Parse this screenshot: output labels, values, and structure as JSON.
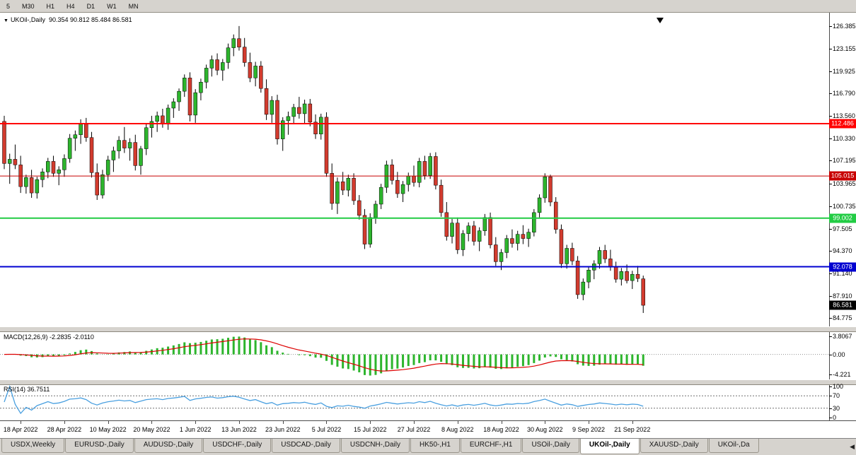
{
  "toolbar": {
    "timeframes": [
      "5",
      "M30",
      "H1",
      "H4",
      "D1",
      "W1",
      "MN"
    ]
  },
  "chart": {
    "collapse_glyph": "▼",
    "symbol_label": "UKOil-,Daily",
    "ohlc_values": "90.354 90.812 85.484 86.581",
    "marker_icon": "arrow-down-marker"
  },
  "chart_data": {
    "type": "candlestick",
    "title": "UKOil-,Daily",
    "symbol": "UKOil-",
    "timeframe": "Daily",
    "ohlc_display": {
      "open": "90.354",
      "high": "90.812",
      "low": "85.484",
      "close": "86.581"
    },
    "ylim": [
      84.775,
      126.385
    ],
    "y_axis_ticks": [
      "126.385",
      "123.155",
      "119.925",
      "116.790",
      "113.560",
      "110.330",
      "107.195",
      "103.965",
      "100.735",
      "97.505",
      "94.370",
      "91.140",
      "87.910",
      "84.775"
    ],
    "hlines": [
      {
        "value": 112.486,
        "label": "112.486",
        "color": "#ff0000",
        "width": 2
      },
      {
        "value": 105.015,
        "label": "105.015",
        "color": "#c80000",
        "width": 1
      },
      {
        "value": 99.002,
        "label": "99.002",
        "color": "#22cc44",
        "width": 2
      },
      {
        "value": 92.078,
        "label": "92.078",
        "color": "#0000d0",
        "width": 2
      }
    ],
    "last_price": {
      "value": 86.581,
      "label": "86.581",
      "color": "#000000"
    },
    "x_labels": [
      {
        "text": "18 Apr 2022",
        "index": 3
      },
      {
        "text": "28 Apr 2022",
        "index": 11
      },
      {
        "text": "10 May 2022",
        "index": 19
      },
      {
        "text": "20 May 2022",
        "index": 27
      },
      {
        "text": "1 Jun 2022",
        "index": 35
      },
      {
        "text": "13 Jun 2022",
        "index": 43
      },
      {
        "text": "23 Jun 2022",
        "index": 51
      },
      {
        "text": "5 Jul 2022",
        "index": 59
      },
      {
        "text": "15 Jul 2022",
        "index": 67
      },
      {
        "text": "27 Jul 2022",
        "index": 75
      },
      {
        "text": "8 Aug 2022",
        "index": 83
      },
      {
        "text": "18 Aug 2022",
        "index": 91
      },
      {
        "text": "30 Aug 2022",
        "index": 99
      },
      {
        "text": "9 Sep 2022",
        "index": 107
      },
      {
        "text": "21 Sep 2022",
        "index": 115
      }
    ],
    "candles": [
      [
        112.8,
        113.6,
        106.0,
        106.8
      ],
      [
        106.8,
        108.2,
        103.9,
        107.4
      ],
      [
        107.4,
        109.5,
        106.0,
        106.6
      ],
      [
        106.6,
        107.9,
        102.6,
        103.5
      ],
      [
        103.5,
        105.2,
        102.5,
        104.8
      ],
      [
        104.8,
        105.9,
        101.9,
        102.6
      ],
      [
        102.6,
        104.9,
        101.8,
        104.5
      ],
      [
        104.5,
        106.1,
        103.4,
        105.6
      ],
      [
        105.6,
        107.6,
        104.7,
        107.1
      ],
      [
        107.1,
        107.9,
        104.9,
        105.4
      ],
      [
        105.4,
        106.4,
        103.7,
        105.9
      ],
      [
        105.9,
        108.1,
        104.9,
        107.5
      ],
      [
        107.5,
        111.0,
        106.9,
        110.4
      ],
      [
        110.4,
        111.5,
        108.6,
        110.9
      ],
      [
        110.9,
        113.1,
        109.6,
        112.4
      ],
      [
        112.4,
        113.3,
        109.9,
        110.5
      ],
      [
        110.5,
        111.3,
        104.8,
        105.5
      ],
      [
        105.5,
        106.8,
        101.6,
        102.3
      ],
      [
        102.3,
        105.9,
        101.8,
        105.2
      ],
      [
        105.2,
        107.9,
        104.3,
        107.3
      ],
      [
        107.3,
        109.2,
        105.6,
        108.6
      ],
      [
        108.6,
        110.7,
        107.5,
        110.1
      ],
      [
        110.1,
        112.0,
        108.3,
        109.0
      ],
      [
        109.0,
        110.4,
        107.2,
        109.8
      ],
      [
        109.8,
        110.9,
        105.8,
        106.5
      ],
      [
        106.5,
        109.3,
        105.2,
        108.9
      ],
      [
        108.9,
        112.4,
        108.0,
        111.9
      ],
      [
        111.9,
        113.6,
        110.5,
        112.8
      ],
      [
        112.8,
        114.2,
        111.3,
        113.6
      ],
      [
        113.6,
        114.6,
        111.9,
        112.4
      ],
      [
        112.4,
        115.2,
        111.6,
        114.7
      ],
      [
        114.7,
        116.1,
        113.3,
        115.6
      ],
      [
        115.6,
        117.5,
        114.3,
        117.1
      ],
      [
        117.1,
        119.5,
        116.3,
        119.0
      ],
      [
        119.0,
        119.8,
        112.8,
        113.7
      ],
      [
        113.7,
        117.4,
        112.6,
        116.9
      ],
      [
        116.9,
        118.9,
        115.8,
        118.4
      ],
      [
        118.4,
        120.9,
        117.5,
        120.4
      ],
      [
        120.4,
        122.2,
        119.2,
        121.6
      ],
      [
        121.6,
        122.5,
        119.4,
        120.1
      ],
      [
        120.1,
        121.7,
        118.6,
        121.2
      ],
      [
        121.2,
        123.9,
        120.3,
        123.3
      ],
      [
        123.3,
        125.2,
        122.1,
        124.6
      ],
      [
        124.6,
        126.4,
        122.9,
        123.4
      ],
      [
        123.4,
        124.7,
        120.6,
        121.2
      ],
      [
        121.2,
        122.6,
        118.4,
        119.0
      ],
      [
        119.0,
        121.3,
        117.8,
        120.7
      ],
      [
        120.7,
        121.4,
        116.9,
        117.5
      ],
      [
        117.5,
        118.8,
        113.0,
        113.8
      ],
      [
        113.8,
        116.4,
        112.6,
        115.8
      ],
      [
        115.8,
        116.6,
        109.5,
        110.3
      ],
      [
        110.3,
        113.4,
        108.6,
        112.9
      ],
      [
        112.9,
        114.2,
        110.9,
        113.5
      ],
      [
        113.5,
        115.3,
        112.4,
        114.8
      ],
      [
        114.8,
        116.3,
        113.2,
        113.9
      ],
      [
        113.9,
        115.9,
        112.5,
        115.3
      ],
      [
        115.3,
        116.0,
        112.1,
        112.7
      ],
      [
        112.7,
        113.8,
        110.3,
        111.0
      ],
      [
        111.0,
        113.9,
        110.2,
        113.4
      ],
      [
        113.4,
        114.1,
        104.9,
        105.4
      ],
      [
        105.4,
        106.8,
        100.2,
        101.1
      ],
      [
        101.1,
        104.8,
        99.6,
        104.2
      ],
      [
        104.2,
        105.6,
        102.3,
        103.0
      ],
      [
        103.0,
        105.2,
        102.1,
        104.7
      ],
      [
        104.7,
        105.4,
        100.9,
        101.5
      ],
      [
        101.5,
        102.3,
        98.8,
        99.4
      ],
      [
        99.4,
        100.3,
        94.6,
        95.3
      ],
      [
        95.3,
        99.7,
        94.8,
        99.1
      ],
      [
        99.1,
        101.5,
        98.2,
        101.0
      ],
      [
        101.0,
        103.9,
        100.3,
        103.4
      ],
      [
        103.4,
        107.2,
        102.6,
        106.6
      ],
      [
        106.6,
        107.4,
        103.8,
        104.4
      ],
      [
        104.4,
        105.6,
        101.9,
        102.5
      ],
      [
        102.5,
        104.3,
        101.3,
        103.8
      ],
      [
        103.8,
        105.5,
        102.8,
        105.0
      ],
      [
        105.0,
        106.5,
        103.5,
        104.1
      ],
      [
        104.1,
        107.6,
        103.4,
        107.1
      ],
      [
        107.1,
        107.9,
        104.5,
        105.1
      ],
      [
        105.1,
        108.3,
        104.6,
        107.8
      ],
      [
        107.8,
        108.4,
        103.1,
        103.7
      ],
      [
        103.7,
        104.5,
        99.2,
        99.8
      ],
      [
        99.8,
        101.3,
        95.8,
        96.4
      ],
      [
        96.4,
        98.9,
        95.4,
        98.3
      ],
      [
        98.3,
        99.1,
        93.9,
        94.5
      ],
      [
        94.5,
        97.3,
        93.6,
        96.8
      ],
      [
        96.8,
        98.4,
        95.7,
        97.9
      ],
      [
        97.9,
        98.6,
        95.1,
        95.7
      ],
      [
        95.7,
        97.7,
        94.3,
        97.2
      ],
      [
        97.2,
        99.6,
        96.5,
        99.1
      ],
      [
        99.1,
        99.8,
        94.7,
        95.2
      ],
      [
        95.2,
        96.3,
        92.2,
        92.8
      ],
      [
        92.8,
        94.6,
        91.6,
        94.1
      ],
      [
        94.1,
        96.6,
        93.3,
        96.1
      ],
      [
        96.1,
        97.4,
        94.8,
        95.4
      ],
      [
        95.4,
        97.2,
        94.4,
        96.7
      ],
      [
        96.7,
        98.0,
        95.3,
        96.1
      ],
      [
        96.1,
        97.5,
        94.9,
        97.0
      ],
      [
        97.0,
        100.3,
        96.4,
        99.8
      ],
      [
        99.8,
        102.4,
        99.1,
        101.9
      ],
      [
        101.9,
        105.4,
        101.2,
        104.9
      ],
      [
        104.9,
        105.2,
        100.7,
        101.3
      ],
      [
        101.3,
        102.0,
        96.8,
        97.4
      ],
      [
        97.4,
        98.1,
        91.9,
        92.5
      ],
      [
        92.5,
        95.2,
        91.8,
        94.7
      ],
      [
        94.7,
        95.5,
        92.3,
        92.9
      ],
      [
        92.9,
        93.6,
        87.5,
        88.1
      ],
      [
        88.1,
        90.4,
        87.3,
        89.9
      ],
      [
        89.9,
        92.1,
        89.0,
        91.6
      ],
      [
        91.6,
        93.0,
        90.3,
        92.5
      ],
      [
        92.5,
        94.9,
        91.8,
        94.4
      ],
      [
        94.4,
        95.2,
        92.6,
        93.2
      ],
      [
        93.2,
        94.5,
        91.5,
        92.0
      ],
      [
        92.0,
        92.8,
        89.8,
        90.3
      ],
      [
        90.3,
        91.9,
        89.4,
        91.4
      ],
      [
        91.4,
        92.4,
        89.7,
        90.1
      ],
      [
        90.1,
        91.5,
        88.9,
        91.0
      ],
      [
        91.0,
        92.2,
        89.9,
        90.4
      ],
      [
        90.354,
        90.812,
        85.484,
        86.581
      ]
    ]
  },
  "macd": {
    "title": "MACD(12,26,9)",
    "values_text": "-2.2835 -2.0110",
    "params": {
      "fast": 12,
      "slow": 26,
      "signal": 9
    },
    "axis": [
      {
        "text": "3.8067",
        "value": 3.8067
      },
      {
        "text": "0.00",
        "value": 0
      },
      {
        "text": "-4.221",
        "value": -4.221
      }
    ]
  },
  "rsi": {
    "title": "RSI(14)",
    "value_text": "36.7511",
    "period": 14,
    "levels": [
      70,
      30
    ],
    "axis": [
      {
        "text": "100",
        "value": 100
      },
      {
        "text": "70",
        "value": 70
      },
      {
        "text": "30",
        "value": 30
      },
      {
        "text": "0",
        "value": 0
      }
    ]
  },
  "tabs": {
    "scroll_icon": "◀",
    "items": [
      {
        "label": "USDX,Weekly",
        "active": false
      },
      {
        "label": "EURUSD-,Daily",
        "active": false
      },
      {
        "label": "AUDUSD-,Daily",
        "active": false
      },
      {
        "label": "USDCHF-,Daily",
        "active": false
      },
      {
        "label": "USDCAD-,Daily",
        "active": false
      },
      {
        "label": "USDCNH-,Daily",
        "active": false
      },
      {
        "label": "HK50-,H1",
        "active": false
      },
      {
        "label": "EURCHF-,H1",
        "active": false
      },
      {
        "label": "USOil-,Daily",
        "active": false
      },
      {
        "label": "UKOil-,Daily",
        "active": true
      },
      {
        "label": "XAUUSD-,Daily",
        "active": false
      },
      {
        "label": "UKOil-,Da",
        "active": false
      }
    ]
  },
  "colors": {
    "candle_up": "#2db52d",
    "candle_down": "#d23b2e",
    "macd_hist": "#2db52d",
    "macd_signal": "#dd0000",
    "rsi_line": "#4aa0e0",
    "toolbar_bg": "#d6d3ce",
    "chart_bg": "#ffffff"
  }
}
